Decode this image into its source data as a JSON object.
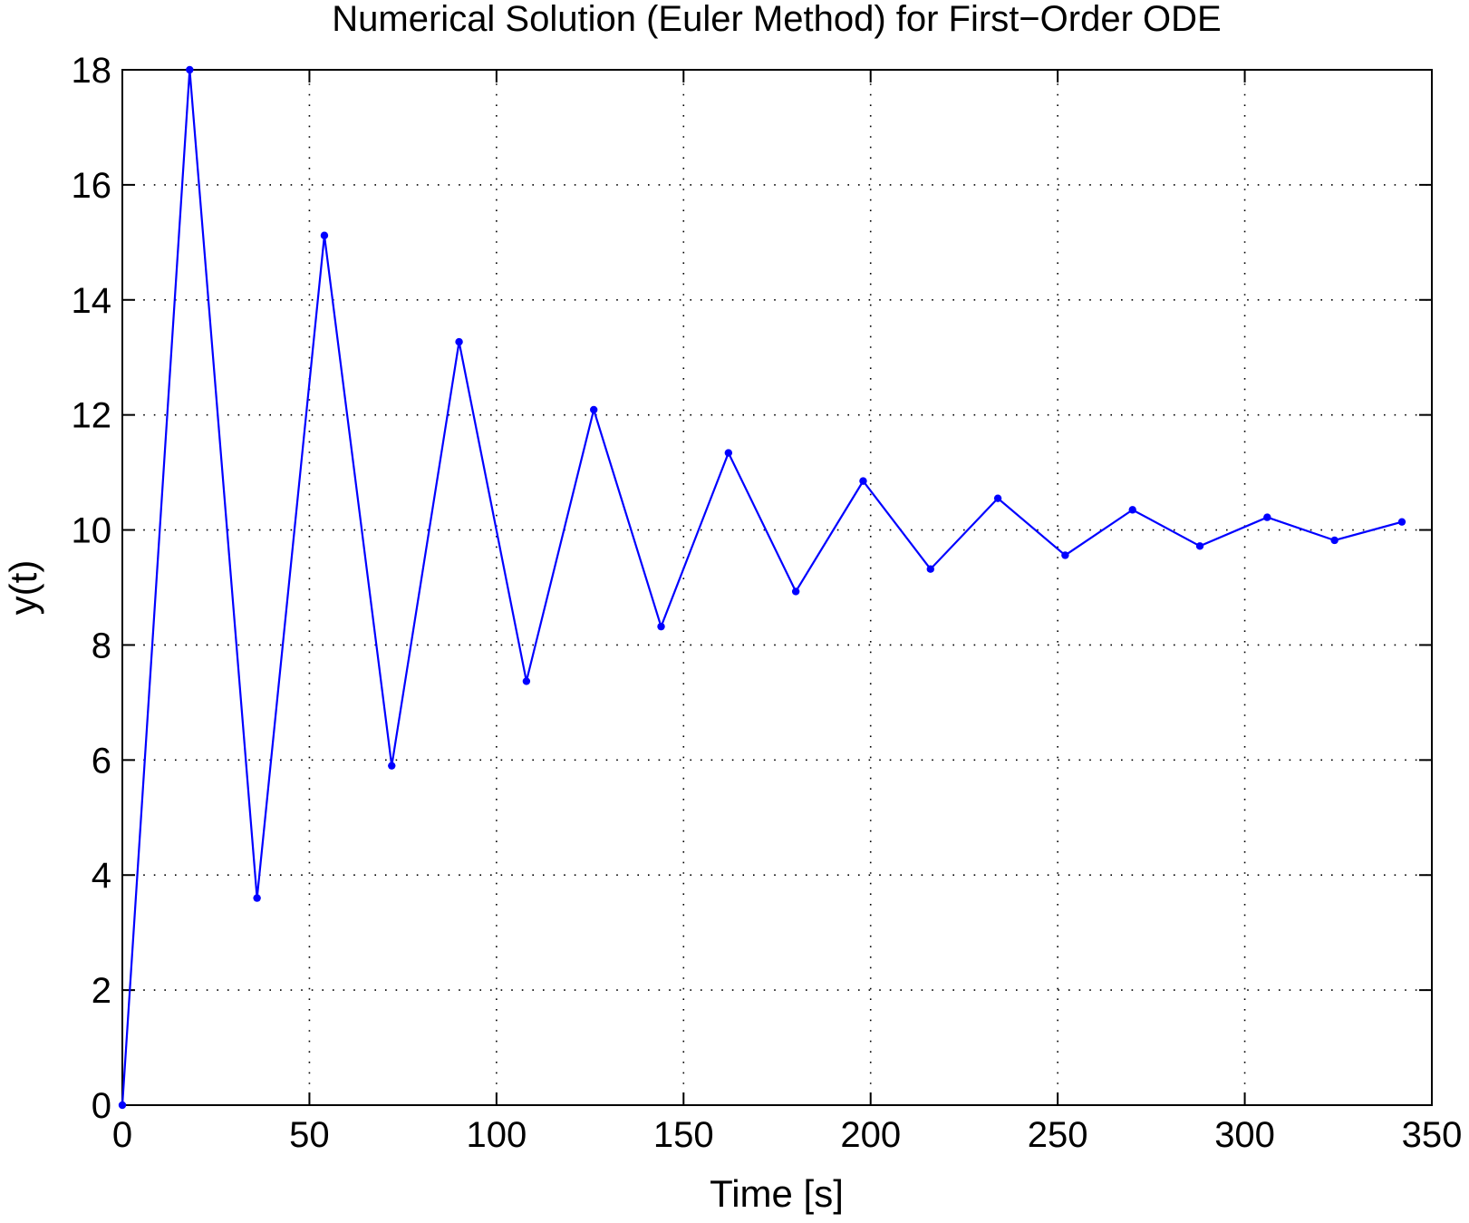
{
  "chart_data": {
    "type": "line",
    "title": "Numerical Solution (Euler Method) for First−Order ODE",
    "xlabel": "Time [s]",
    "ylabel": "y(t)",
    "xlim": [
      0,
      350
    ],
    "ylim": [
      0,
      18
    ],
    "xticks": [
      0,
      50,
      100,
      150,
      200,
      250,
      300,
      350
    ],
    "yticks": [
      0,
      2,
      4,
      6,
      8,
      10,
      12,
      14,
      16,
      18
    ],
    "xtick_labels": [
      "0",
      "50",
      "100",
      "150",
      "200",
      "250",
      "300",
      "350"
    ],
    "ytick_labels": [
      "0",
      "2",
      "4",
      "6",
      "8",
      "10",
      "12",
      "14",
      "16",
      "18"
    ],
    "grid": true,
    "marker": "dot",
    "colors": {
      "line": "#0000ff",
      "axes": "#000000",
      "background": "#ffffff"
    },
    "series": [
      {
        "x": [
          0,
          18,
          36,
          54,
          72,
          90,
          108,
          126,
          144,
          162,
          180,
          198,
          216,
          234,
          252,
          270,
          288,
          306,
          324,
          342
        ],
        "values": [
          0,
          18.0,
          3.6,
          15.12,
          5.9,
          13.27,
          7.37,
          12.09,
          8.32,
          11.34,
          8.93,
          10.85,
          9.32,
          10.55,
          9.56,
          10.35,
          9.72,
          10.22,
          9.82,
          10.14
        ]
      }
    ]
  }
}
